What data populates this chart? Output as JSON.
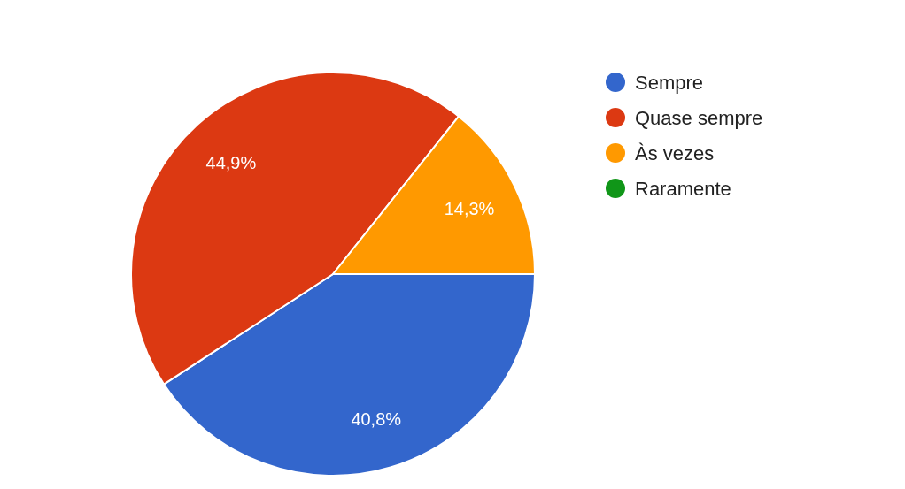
{
  "chart_data": {
    "type": "pie",
    "categories": [
      "Sempre",
      "Quase sempre",
      "Às vezes",
      "Raramente"
    ],
    "values": [
      40.8,
      44.9,
      14.3,
      0
    ],
    "colors": [
      "#3366cc",
      "#dc3912",
      "#ff9900",
      "#109618"
    ],
    "value_labels": [
      "40,8%",
      "44,9%",
      "14,3%",
      null
    ],
    "legend": "right"
  }
}
